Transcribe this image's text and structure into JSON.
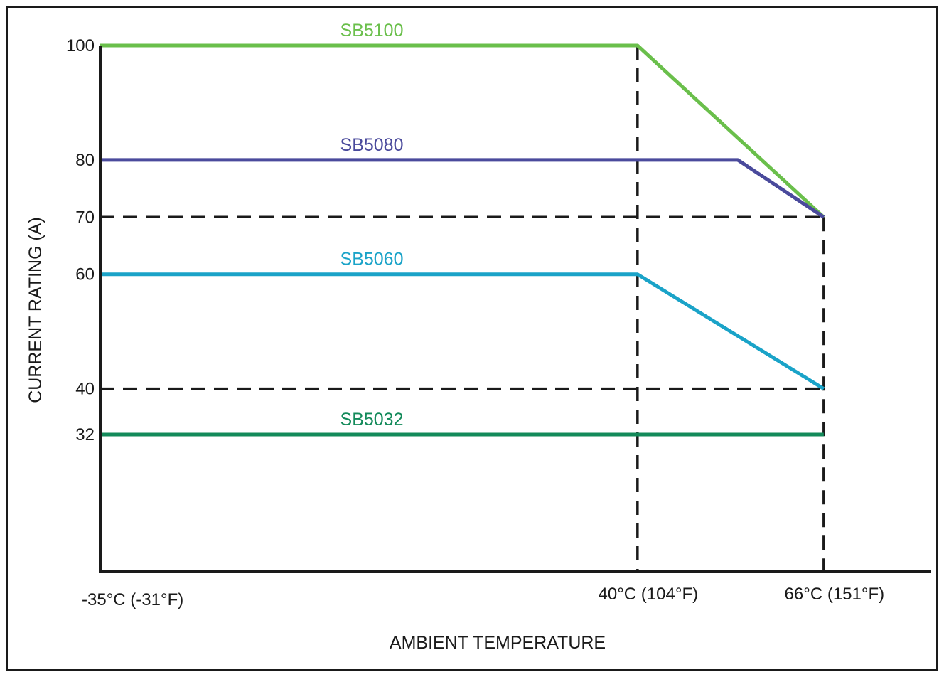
{
  "chart_data": {
    "type": "line",
    "xlabel": "AMBIENT TEMPERATURE",
    "ylabel": "CURRENT RATING (A)",
    "x_tick_labels": [
      "-35°C (-31°F)",
      "40°C (104°F)",
      "66°C (151°F)"
    ],
    "x_ticks": [
      -35,
      40,
      66
    ],
    "xlim": [
      -35,
      81
    ],
    "y_ticks": [
      100,
      80,
      70,
      60,
      40,
      32
    ],
    "ylim": [
      8,
      100
    ],
    "grid": false,
    "reference_lines": [
      {
        "orientation": "horizontal",
        "y": 70,
        "x_range": [
          -35,
          66
        ]
      },
      {
        "orientation": "horizontal",
        "y": 40,
        "x_range": [
          -35,
          66
        ]
      },
      {
        "orientation": "vertical",
        "x": 40,
        "y_range": [
          8,
          100
        ]
      },
      {
        "orientation": "vertical",
        "x": 66,
        "y_range": [
          8,
          70
        ]
      }
    ],
    "series": [
      {
        "name": "SB5100",
        "color": "#6abf4b",
        "x": [
          -35,
          40,
          66
        ],
        "y": [
          100,
          100,
          70
        ]
      },
      {
        "name": "SB5080",
        "color": "#4a4a9c",
        "x": [
          -35,
          54,
          66
        ],
        "y": [
          80,
          80,
          70
        ]
      },
      {
        "name": "SB5060",
        "color": "#1aa3c8",
        "x": [
          -35,
          40,
          66
        ],
        "y": [
          60,
          60,
          40
        ]
      },
      {
        "name": "SB5032",
        "color": "#138a5a",
        "x": [
          -35,
          66
        ],
        "y": [
          32,
          32
        ]
      }
    ]
  }
}
